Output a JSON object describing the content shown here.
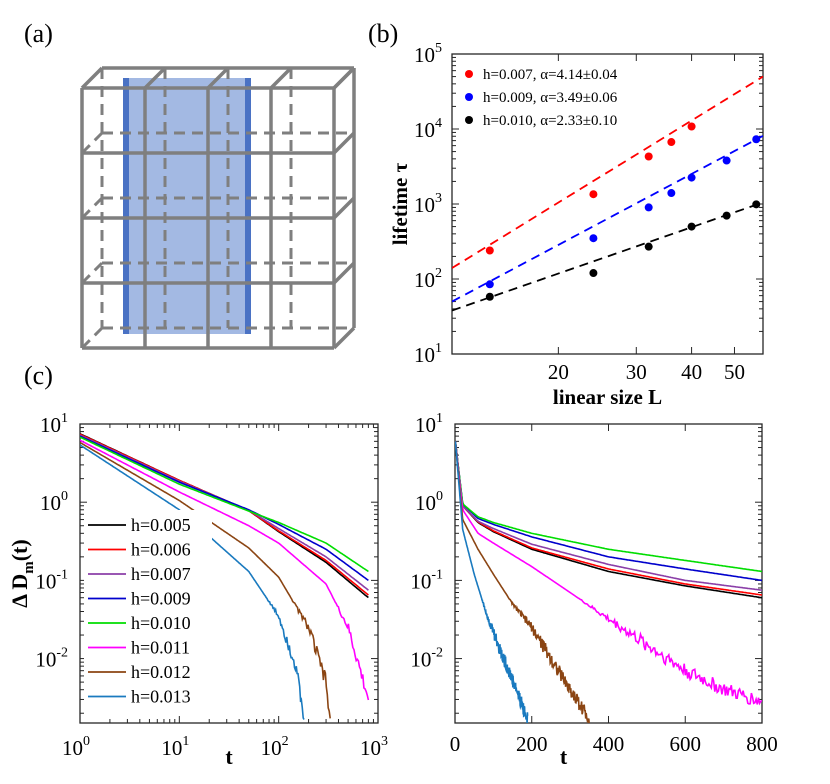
{
  "panel_labels": {
    "a": "(a)",
    "b": "(b)",
    "c": "(c)"
  },
  "chart_data": [
    {
      "id": "b",
      "type": "scatter",
      "scale": {
        "x": "log",
        "y": "log"
      },
      "xlabel": "linear size L",
      "ylabel": "lifetime τ",
      "xlim": [
        11.5,
        58
      ],
      "ylim": [
        10,
        100000
      ],
      "xticks": [
        20,
        30,
        40,
        50
      ],
      "yticks": [
        {
          "value": 10,
          "label": "10",
          "exp": "1"
        },
        {
          "value": 100,
          "label": "10",
          "exp": "2"
        },
        {
          "value": 1000,
          "label": "10",
          "exp": "3"
        },
        {
          "value": 10000,
          "label": "10",
          "exp": "4"
        },
        {
          "value": 100000,
          "label": "10",
          "exp": "5"
        }
      ],
      "legend_position": "top-left",
      "series": [
        {
          "name": "h=0.007, α=4.14±0.04",
          "color": "#ff0000",
          "x": [
            14,
            24,
            32,
            36,
            40
          ],
          "y": [
            240,
            1350,
            4300,
            6700,
            10800
          ],
          "fit": {
            "x": [
              11.5,
              58
            ],
            "y": [
              140,
              50000
            ]
          }
        },
        {
          "name": "h=0.009, α=3.49±0.06",
          "color": "#0000ff",
          "x": [
            14,
            24,
            32,
            36,
            40,
            48,
            56
          ],
          "y": [
            85,
            350,
            900,
            1400,
            2250,
            3800,
            7300
          ],
          "fit": {
            "x": [
              11.5,
              58
            ],
            "y": [
              50,
              8100
            ]
          }
        },
        {
          "name": "h=0.010, α=2.33±0.10",
          "color": "#000000",
          "x": [
            14,
            24,
            32,
            40,
            48,
            56
          ],
          "y": [
            58,
            120,
            270,
            500,
            700,
            990
          ],
          "fit": {
            "x": [
              11.5,
              58
            ],
            "y": [
              38,
              1050
            ]
          }
        }
      ]
    },
    {
      "id": "c-left",
      "type": "line",
      "scale": {
        "x": "log",
        "y": "log"
      },
      "xlabel": "t",
      "ylabel": "Δ D_m(t)",
      "ylabel_parts": {
        "main": "Δ D",
        "sub": "m",
        "tail": "(t)"
      },
      "xlim": [
        1,
        1000
      ],
      "ylim": [
        0.0015,
        10
      ],
      "xticks": [
        {
          "value": 1,
          "label": "10",
          "exp": "0"
        },
        {
          "value": 10,
          "label": "10",
          "exp": "1"
        },
        {
          "value": 100,
          "label": "10",
          "exp": "2"
        },
        {
          "value": 1000,
          "label": "10",
          "exp": "3"
        }
      ],
      "yticks": [
        {
          "value": 0.01,
          "label": "10",
          "exp": "-2"
        },
        {
          "value": 0.1,
          "label": "10",
          "exp": "-1"
        },
        {
          "value": 1,
          "label": "10",
          "exp": "0"
        },
        {
          "value": 10,
          "label": "10",
          "exp": "1"
        }
      ],
      "legend_position": "bottom-left",
      "series": [
        {
          "name": "h=0.005",
          "color": "#000000",
          "x": [
            1,
            10,
            50,
            100,
            300,
            800
          ],
          "y": [
            7.5,
            1.9,
            0.78,
            0.42,
            0.17,
            0.06
          ]
        },
        {
          "name": "h=0.006",
          "color": "#ff0000",
          "x": [
            1,
            10,
            50,
            100,
            300,
            800
          ],
          "y": [
            7.4,
            1.9,
            0.78,
            0.43,
            0.18,
            0.065
          ]
        },
        {
          "name": "h=0.007",
          "color": "#8b3fa8",
          "x": [
            1,
            10,
            50,
            100,
            300,
            800
          ],
          "y": [
            7.2,
            1.85,
            0.79,
            0.46,
            0.2,
            0.075
          ]
        },
        {
          "name": "h=0.009",
          "color": "#0000cc",
          "x": [
            1,
            10,
            50,
            100,
            300,
            800
          ],
          "y": [
            7.0,
            1.8,
            0.8,
            0.52,
            0.25,
            0.1
          ]
        },
        {
          "name": "h=0.010",
          "color": "#00dd00",
          "x": [
            1,
            10,
            50,
            100,
            300,
            800
          ],
          "y": [
            6.8,
            1.7,
            0.77,
            0.55,
            0.3,
            0.13
          ]
        },
        {
          "name": "h=0.011",
          "color": "#ff00ff",
          "x": [
            1,
            10,
            50,
            100,
            300,
            500,
            800
          ],
          "y": [
            6.2,
            1.35,
            0.5,
            0.3,
            0.09,
            0.025,
            0.003
          ]
        },
        {
          "name": "h=0.012",
          "color": "#8b4513",
          "x": [
            1,
            10,
            50,
            100,
            200,
            300,
            330
          ],
          "y": [
            5.8,
            1.05,
            0.26,
            0.11,
            0.025,
            0.005,
            0.0015
          ]
        },
        {
          "name": "h=0.013",
          "color": "#1a7abf",
          "x": [
            1,
            10,
            50,
            100,
            150,
            180
          ],
          "y": [
            5.4,
            0.8,
            0.13,
            0.035,
            0.008,
            0.0015
          ]
        }
      ]
    },
    {
      "id": "c-right",
      "type": "line",
      "scale": {
        "x": "linear",
        "y": "log"
      },
      "xlabel": "t",
      "xlim": [
        0,
        800
      ],
      "ylim": [
        0.0015,
        10
      ],
      "xticks": [
        0,
        200,
        400,
        600,
        800
      ],
      "yticks": [
        {
          "value": 0.01,
          "label": "10",
          "exp": "-2"
        },
        {
          "value": 0.1,
          "label": "10",
          "exp": "-1"
        },
        {
          "value": 1,
          "label": "10",
          "exp": "0"
        },
        {
          "value": 10,
          "label": "10",
          "exp": "1"
        }
      ],
      "series": [
        {
          "name": "h=0.005",
          "color": "#000000",
          "x": [
            1,
            20,
            60,
            100,
            200,
            400,
            600,
            800
          ],
          "y": [
            6,
            0.9,
            0.55,
            0.42,
            0.25,
            0.13,
            0.085,
            0.06
          ]
        },
        {
          "name": "h=0.006",
          "color": "#ff0000",
          "x": [
            1,
            20,
            60,
            100,
            200,
            400,
            600,
            800
          ],
          "y": [
            6,
            0.9,
            0.56,
            0.43,
            0.26,
            0.14,
            0.09,
            0.065
          ]
        },
        {
          "name": "h=0.007",
          "color": "#8b3fa8",
          "x": [
            1,
            20,
            60,
            100,
            200,
            400,
            600,
            800
          ],
          "y": [
            6,
            0.9,
            0.57,
            0.46,
            0.29,
            0.16,
            0.1,
            0.075
          ]
        },
        {
          "name": "h=0.009",
          "color": "#0000cc",
          "x": [
            1,
            20,
            60,
            100,
            200,
            400,
            600,
            800
          ],
          "y": [
            6,
            0.95,
            0.62,
            0.52,
            0.36,
            0.2,
            0.14,
            0.1
          ]
        },
        {
          "name": "h=0.010",
          "color": "#00dd00",
          "x": [
            1,
            20,
            60,
            100,
            200,
            400,
            600,
            800
          ],
          "y": [
            6,
            0.95,
            0.65,
            0.55,
            0.4,
            0.25,
            0.18,
            0.13
          ]
        },
        {
          "name": "h=0.011",
          "color": "#ff00ff",
          "x": [
            1,
            20,
            60,
            100,
            200,
            300,
            400,
            500,
            600,
            700,
            800
          ],
          "y": [
            6,
            0.8,
            0.4,
            0.3,
            0.15,
            0.07,
            0.032,
            0.015,
            0.007,
            0.004,
            0.0028
          ]
        },
        {
          "name": "h=0.012",
          "color": "#8b4513",
          "x": [
            1,
            20,
            60,
            100,
            150,
            200,
            250,
            300,
            350
          ],
          "y": [
            6,
            0.6,
            0.25,
            0.12,
            0.05,
            0.025,
            0.01,
            0.004,
            0.0017
          ]
        },
        {
          "name": "h=0.013",
          "color": "#1a7abf",
          "x": [
            1,
            20,
            50,
            80,
            120,
            160,
            190
          ],
          "y": [
            6,
            0.45,
            0.12,
            0.04,
            0.012,
            0.004,
            0.0016
          ]
        }
      ]
    }
  ]
}
